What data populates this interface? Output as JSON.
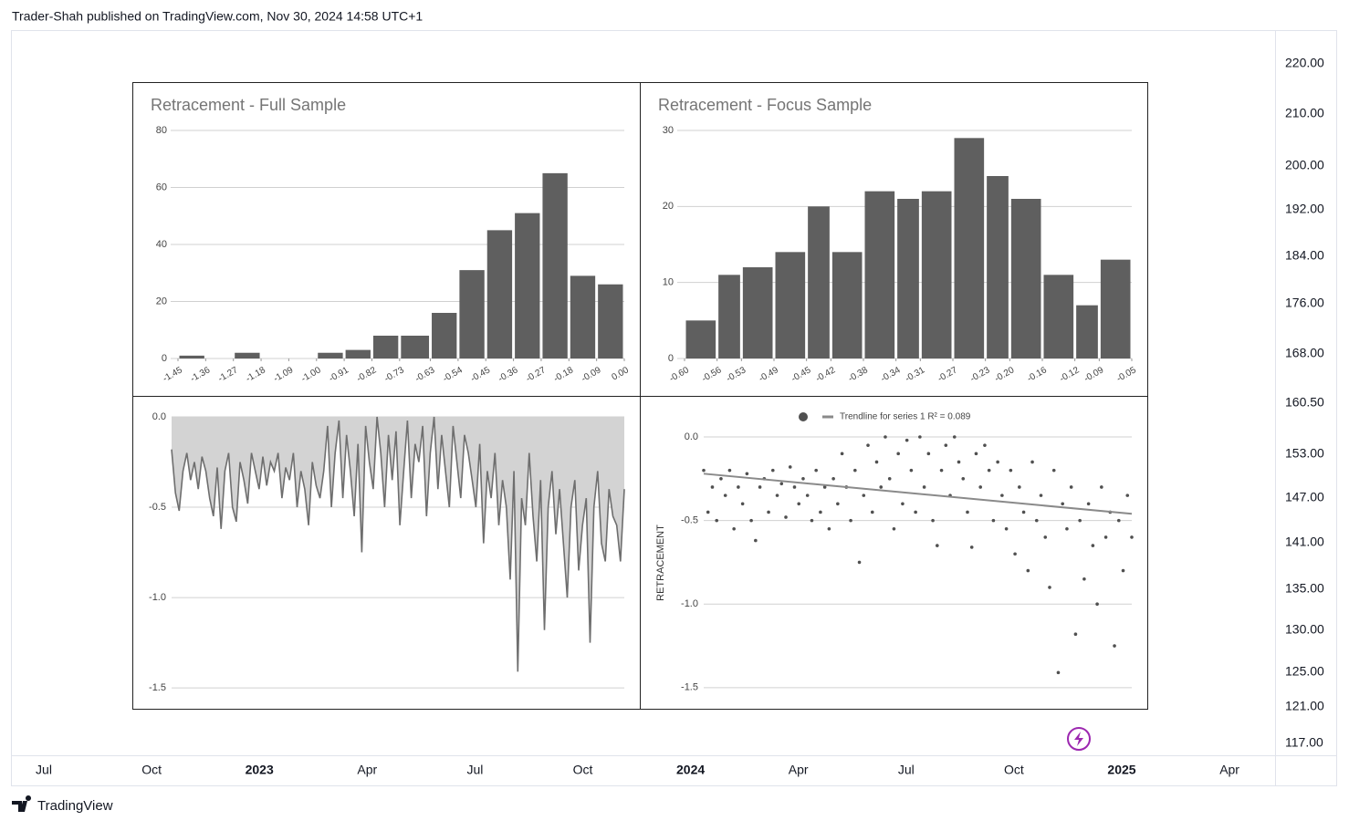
{
  "header": "Trader-Shah published on TradingView.com, Nov 30, 2024 14:58 UTC+1",
  "footer": "TradingView",
  "price_scale": [
    "220.00",
    "210.00",
    "200.00",
    "192.00",
    "184.00",
    "176.00",
    "168.00",
    "160.50",
    "153.00",
    "147.00",
    "141.00",
    "135.00",
    "130.00",
    "125.00",
    "121.00",
    "117.00"
  ],
  "time_scale": [
    "Jul",
    "Oct",
    "2023",
    "Apr",
    "Jul",
    "Oct",
    "2024",
    "Apr",
    "Jul",
    "Oct",
    "2025",
    "Apr"
  ],
  "chart_data": [
    {
      "type": "histogram",
      "title": "Retracement - Full Sample",
      "bins": [
        -1.45,
        -1.36,
        -1.27,
        -1.18,
        -1.09,
        -1.0,
        -0.91,
        -0.82,
        -0.73,
        -0.63,
        -0.54,
        -0.45,
        -0.36,
        -0.27,
        -0.18,
        -0.09,
        0
      ],
      "xticks": [
        -1.45,
        -1.36,
        -1.27,
        -1.18,
        -1.09,
        {
          "value": -1,
          "label": "-1.00"
        },
        -0.91,
        -0.82,
        -0.73,
        -0.63,
        -0.54,
        -0.45,
        -0.36,
        -0.27,
        -0.18,
        -0.09,
        {
          "value": 0,
          "label": "0.00"
        }
      ],
      "xlim": [
        -1.45,
        0
      ],
      "values": [
        1,
        0,
        2,
        0,
        0,
        2,
        3,
        8,
        8,
        16,
        31,
        45,
        51,
        65,
        29,
        26
      ],
      "color": "#5f5f5f",
      "ylim": [
        0,
        80
      ],
      "yticks": [
        0,
        20,
        40,
        60,
        80
      ],
      "grid": true
    },
    {
      "type": "histogram",
      "title": "Retracement - Focus Sample",
      "bins": [
        -0.6,
        -0.56,
        -0.53,
        -0.49,
        -0.45,
        -0.42,
        -0.38,
        -0.34,
        -0.31,
        -0.27,
        -0.23,
        -0.2,
        -0.16,
        -0.12,
        -0.09,
        -0.05
      ],
      "xticks": [
        {
          "value": -0.6,
          "label": "-0.60"
        },
        -0.56,
        -0.53,
        -0.49,
        -0.45,
        -0.42,
        -0.38,
        -0.34,
        -0.31,
        -0.27,
        -0.23,
        {
          "value": -0.2,
          "label": "-0.20"
        },
        -0.16,
        -0.12,
        -0.09,
        -0.05
      ],
      "xlim": [
        -0.6,
        -0.05
      ],
      "values": [
        5,
        11,
        12,
        14,
        20,
        14,
        22,
        21,
        22,
        29,
        24,
        21,
        11,
        7,
        13
      ],
      "color": "#5f5f5f",
      "ylim": [
        0,
        30
      ],
      "yticks": [
        0,
        10,
        20,
        30
      ],
      "grid": true
    },
    {
      "type": "area",
      "values": [
        -0.18,
        -0.42,
        -0.52,
        -0.3,
        -0.2,
        -0.35,
        -0.25,
        -0.4,
        -0.22,
        -0.3,
        -0.45,
        -0.55,
        -0.28,
        -0.62,
        -0.3,
        -0.2,
        -0.5,
        -0.58,
        -0.25,
        -0.35,
        -0.48,
        -0.2,
        -0.3,
        -0.4,
        -0.22,
        -0.38,
        -0.25,
        -0.3,
        -0.2,
        -0.45,
        -0.28,
        -0.35,
        -0.2,
        -0.5,
        -0.3,
        -0.4,
        -0.6,
        -0.25,
        -0.38,
        -0.45,
        -0.3,
        -0.05,
        -0.5,
        -0.2,
        -0.02,
        -0.45,
        -0.1,
        -0.3,
        -0.55,
        -0.15,
        -0.75,
        -0.05,
        -0.25,
        -0.4,
        0,
        -0.2,
        -0.5,
        -0.1,
        -0.35,
        -0.08,
        -0.6,
        -0.3,
        -0.02,
        -0.45,
        -0.15,
        -0.25,
        -0.05,
        -0.55,
        -0.2,
        0,
        -0.4,
        -0.1,
        -0.3,
        -0.5,
        -0.05,
        -0.25,
        -0.45,
        -0.1,
        -0.2,
        -0.35,
        -0.5,
        -0.15,
        -0.7,
        -0.3,
        -0.45,
        -0.2,
        -0.6,
        -0.35,
        -0.5,
        -0.9,
        -0.3,
        -1.41,
        -0.45,
        -0.6,
        -0.2,
        -0.55,
        -0.8,
        -0.35,
        -1.18,
        -0.5,
        -0.3,
        -0.65,
        -0.4,
        -0.7,
        -1.0,
        -0.5,
        -0.35,
        -0.85,
        -0.6,
        -0.45,
        -1.25,
        -0.5,
        -0.3,
        -0.7,
        -0.8,
        -0.4,
        -0.55,
        -0.6,
        -0.8,
        -0.4
      ],
      "color": "#6e6e6e",
      "fill": "#d3d3d3",
      "ylim": [
        -1.55,
        0
      ],
      "yticks": [
        {
          "value": 0,
          "label": "0.0"
        },
        -0.5,
        {
          "value": -1,
          "label": "-1.0"
        },
        -1.5
      ],
      "grid": true
    },
    {
      "type": "scatter",
      "ylabel": "RETRACEMENT",
      "values": [
        -0.2,
        -0.45,
        -0.3,
        -0.5,
        -0.25,
        -0.35,
        -0.2,
        -0.55,
        -0.3,
        -0.4,
        -0.22,
        -0.5,
        -0.62,
        -0.3,
        -0.25,
        -0.45,
        -0.2,
        -0.35,
        -0.28,
        -0.48,
        -0.18,
        -0.3,
        -0.4,
        -0.25,
        -0.35,
        -0.5,
        -0.2,
        -0.45,
        -0.3,
        -0.55,
        -0.25,
        -0.4,
        -0.1,
        -0.3,
        -0.5,
        -0.2,
        -0.75,
        -0.35,
        -0.05,
        -0.45,
        -0.15,
        -0.3,
        0,
        -0.25,
        -0.55,
        -0.1,
        -0.4,
        -0.02,
        -0.2,
        -0.45,
        0,
        -0.3,
        -0.1,
        -0.5,
        -0.65,
        -0.2,
        -0.05,
        -0.35,
        0,
        -0.15,
        -0.25,
        -0.45,
        -0.66,
        -0.1,
        -0.3,
        -0.05,
        -0.2,
        -0.5,
        -0.15,
        -0.35,
        -0.55,
        -0.2,
        -0.7,
        -0.3,
        -0.45,
        -0.8,
        -0.15,
        -0.5,
        -0.35,
        -0.6,
        -0.9,
        -0.2,
        -1.41,
        -0.4,
        -0.55,
        -0.3,
        -1.18,
        -0.5,
        -0.85,
        -0.4,
        -0.65,
        -1.0,
        -0.3,
        -0.6,
        -0.45,
        -1.25,
        -0.5,
        -0.8,
        -0.35,
        -0.6
      ],
      "color": "#505050",
      "trendline": {
        "label": "Trendline for series 1 R² = 0.089",
        "values": [
          -0.22,
          -0.46
        ],
        "color": "#8a8a8a"
      },
      "ylim": [
        -1.55,
        0
      ],
      "yticks": [
        {
          "value": 0,
          "label": "0.0"
        },
        -0.5,
        {
          "value": -1,
          "label": "-1.0"
        },
        -1.5
      ],
      "grid": true
    }
  ]
}
